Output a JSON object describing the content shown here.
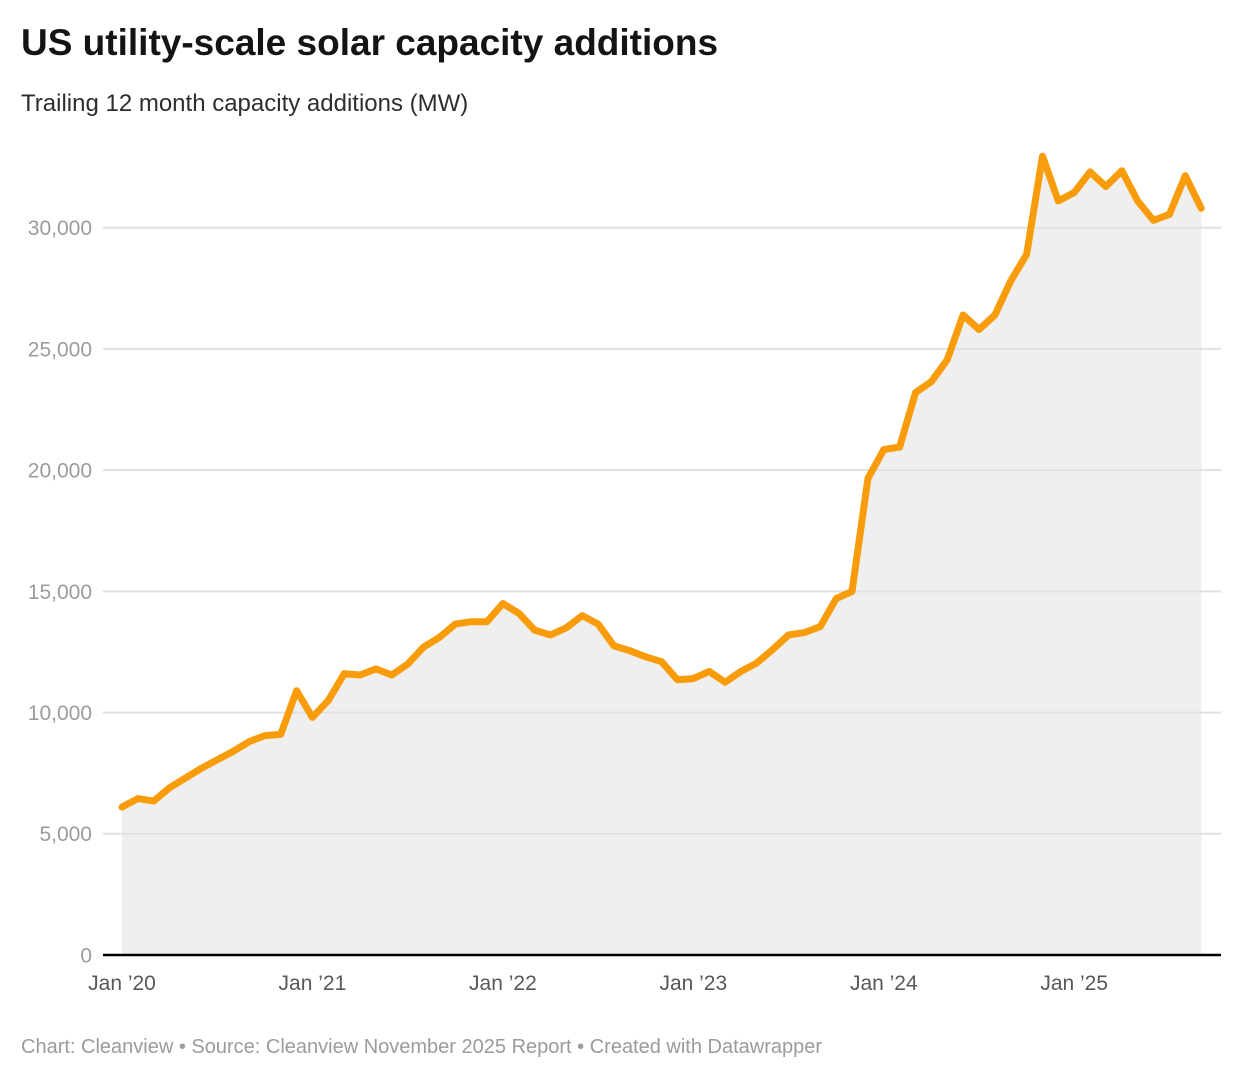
{
  "header": {
    "title": "US utility-scale solar capacity additions",
    "subtitle": "Trailing 12 month capacity additions (MW)"
  },
  "footer": {
    "text": "Chart: Cleanview • Source: Cleanview November 2025 Report • Created with Datawrapper"
  },
  "colors": {
    "line": "#F89C0C",
    "area_fill": "#EFEFEF",
    "grid": "#E1E1E1",
    "baseline": "#000000",
    "y_tick_text": "#9C9C9C",
    "x_tick_text": "#585858"
  },
  "chart_data": {
    "type": "area",
    "title": "US utility-scale solar capacity additions",
    "subtitle": "Trailing 12 month capacity additions (MW)",
    "ylabel": "Trailing 12 month capacity additions (MW)",
    "xlabel": "",
    "legend": "none",
    "grid": true,
    "ylim": [
      0,
      34000
    ],
    "y_ticks": [
      0,
      5000,
      10000,
      15000,
      20000,
      25000,
      30000
    ],
    "y_tick_labels": [
      "0",
      "5,000",
      "10,000",
      "15,000",
      "20,000",
      "25,000",
      "30,000"
    ],
    "x_tick_labels": [
      "Jan ’20",
      "Jan ’21",
      "Jan ’22",
      "Jan ’23",
      "Jan ’24",
      "Jan ’25"
    ],
    "x_tick_month_index": [
      0,
      12,
      24,
      36,
      48,
      60
    ],
    "x": [
      "2020-01",
      "2020-02",
      "2020-03",
      "2020-04",
      "2020-05",
      "2020-06",
      "2020-07",
      "2020-08",
      "2020-09",
      "2020-10",
      "2020-11",
      "2020-12",
      "2021-01",
      "2021-02",
      "2021-03",
      "2021-04",
      "2021-05",
      "2021-06",
      "2021-07",
      "2021-08",
      "2021-09",
      "2021-10",
      "2021-11",
      "2021-12",
      "2022-01",
      "2022-02",
      "2022-03",
      "2022-04",
      "2022-05",
      "2022-06",
      "2022-07",
      "2022-08",
      "2022-09",
      "2022-10",
      "2022-11",
      "2022-12",
      "2023-01",
      "2023-02",
      "2023-03",
      "2023-04",
      "2023-05",
      "2023-06",
      "2023-07",
      "2023-08",
      "2023-09",
      "2023-10",
      "2023-11",
      "2023-12",
      "2024-01",
      "2024-02",
      "2024-03",
      "2024-04",
      "2024-05",
      "2024-06",
      "2024-07",
      "2024-08",
      "2024-09",
      "2024-10",
      "2024-11",
      "2024-12",
      "2025-01",
      "2025-02",
      "2025-03",
      "2025-04",
      "2025-05",
      "2025-06",
      "2025-07",
      "2025-08",
      "2025-09"
    ],
    "values": [
      6100,
      6450,
      6350,
      6900,
      7300,
      7700,
      8050,
      8400,
      8800,
      9050,
      9100,
      10900,
      9800,
      10500,
      11600,
      11550,
      11800,
      11550,
      12000,
      12700,
      13100,
      13650,
      13750,
      13750,
      14500,
      14100,
      13400,
      13200,
      13500,
      14000,
      13650,
      12750,
      12550,
      12300,
      12100,
      11350,
      11400,
      11700,
      11250,
      11700,
      12050,
      12600,
      13200,
      13300,
      13550,
      14700,
      15000,
      19650,
      20850,
      20950,
      23200,
      23650,
      24550,
      26400,
      25800,
      26400,
      27800,
      28900,
      32950,
      31100,
      31450,
      32300,
      31700,
      32350,
      31100,
      30300,
      30550,
      32150,
      30800
    ]
  }
}
